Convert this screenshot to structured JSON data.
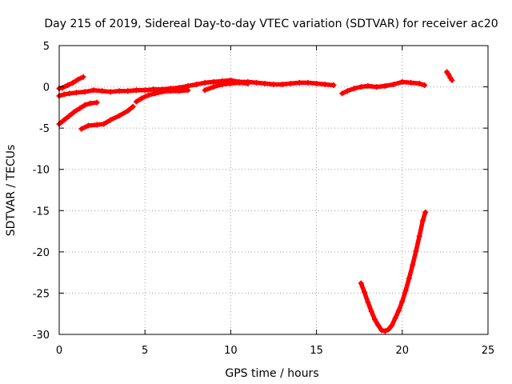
{
  "chart_data": {
    "type": "scatter",
    "title": "Day 215 of 2019, Sidereal Day-to-day VTEC variation (SDTVAR) for receiver ac20",
    "xlabel": "GPS time / hours",
    "ylabel": "SDTVAR / TECUs",
    "xlim": [
      0,
      25
    ],
    "ylim": [
      -30,
      5
    ],
    "xticks": [
      0,
      5,
      10,
      15,
      20,
      25
    ],
    "yticks": [
      5,
      0,
      -5,
      -10,
      -15,
      -20,
      -25,
      -30
    ],
    "grid": true,
    "series": [
      {
        "name": "SDTVAR",
        "color": "#ff0000",
        "segments": [
          [
            [
              0.0,
              -1.1
            ],
            [
              0.3,
              -0.9
            ],
            [
              0.6,
              -0.8
            ],
            [
              1.0,
              -0.7
            ],
            [
              1.5,
              -0.6
            ],
            [
              2.0,
              -0.4
            ],
            [
              2.5,
              -0.5
            ],
            [
              3.0,
              -0.6
            ],
            [
              3.5,
              -0.5
            ],
            [
              4.0,
              -0.5
            ],
            [
              4.5,
              -0.4
            ],
            [
              5.0,
              -0.4
            ],
            [
              5.5,
              -0.3
            ],
            [
              6.0,
              -0.3
            ],
            [
              6.5,
              -0.2
            ],
            [
              7.0,
              -0.1
            ],
            [
              7.5,
              0.1
            ],
            [
              8.0,
              0.3
            ],
            [
              8.5,
              0.5
            ],
            [
              9.0,
              0.6
            ],
            [
              9.5,
              0.7
            ],
            [
              10.0,
              0.8
            ],
            [
              10.5,
              0.6
            ],
            [
              11.0,
              0.6
            ],
            [
              11.5,
              0.5
            ],
            [
              12.0,
              0.4
            ],
            [
              12.5,
              0.3
            ],
            [
              13.0,
              0.3
            ],
            [
              13.5,
              0.4
            ],
            [
              14.0,
              0.5
            ],
            [
              14.5,
              0.5
            ],
            [
              15.0,
              0.4
            ],
            [
              15.5,
              0.3
            ],
            [
              16.0,
              0.2
            ]
          ],
          [
            [
              0.0,
              -0.2
            ],
            [
              0.2,
              -0.1
            ],
            [
              0.5,
              0.2
            ],
            [
              0.8,
              0.5
            ],
            [
              1.1,
              0.9
            ],
            [
              1.4,
              1.2
            ]
          ],
          [
            [
              0.0,
              -4.5
            ],
            [
              0.3,
              -4.0
            ],
            [
              0.6,
              -3.5
            ],
            [
              0.9,
              -3.0
            ],
            [
              1.2,
              -2.6
            ],
            [
              1.5,
              -2.2
            ],
            [
              1.8,
              -2.0
            ],
            [
              2.2,
              -1.9
            ]
          ],
          [
            [
              1.3,
              -5.1
            ],
            [
              1.7,
              -4.7
            ],
            [
              2.2,
              -4.6
            ],
            [
              2.6,
              -4.5
            ],
            [
              3.0,
              -4.0
            ],
            [
              3.5,
              -3.5
            ],
            [
              4.0,
              -2.9
            ],
            [
              4.3,
              -2.4
            ]
          ],
          [
            [
              4.5,
              -1.8
            ],
            [
              4.8,
              -1.4
            ],
            [
              5.2,
              -1.0
            ],
            [
              5.6,
              -0.8
            ],
            [
              6.0,
              -0.6
            ],
            [
              6.5,
              -0.5
            ],
            [
              7.0,
              -0.5
            ],
            [
              7.5,
              -0.4
            ]
          ],
          [
            [
              8.5,
              -0.4
            ],
            [
              9.0,
              0.0
            ],
            [
              9.5,
              0.3
            ],
            [
              10.0,
              0.4
            ],
            [
              10.5,
              0.5
            ],
            [
              11.0,
              0.4
            ]
          ],
          [
            [
              16.5,
              -0.8
            ],
            [
              16.8,
              -0.5
            ],
            [
              17.2,
              -0.2
            ],
            [
              17.6,
              0.0
            ],
            [
              18.0,
              0.1
            ],
            [
              18.5,
              0.0
            ],
            [
              19.0,
              0.1
            ],
            [
              19.5,
              0.3
            ],
            [
              20.0,
              0.6
            ],
            [
              20.5,
              0.5
            ],
            [
              21.0,
              0.4
            ],
            [
              21.3,
              0.2
            ]
          ],
          [
            [
              22.6,
              1.8
            ],
            [
              22.7,
              1.5
            ],
            [
              22.8,
              1.1
            ],
            [
              22.9,
              0.8
            ]
          ],
          [
            [
              17.6,
              -23.8
            ],
            [
              17.8,
              -24.9
            ],
            [
              18.0,
              -26.1
            ],
            [
              18.2,
              -27.2
            ],
            [
              18.4,
              -28.2
            ],
            [
              18.6,
              -28.9
            ],
            [
              18.8,
              -29.5
            ],
            [
              19.0,
              -29.6
            ],
            [
              19.2,
              -29.4
            ],
            [
              19.4,
              -28.9
            ],
            [
              19.6,
              -28.0
            ],
            [
              19.8,
              -27.1
            ],
            [
              20.0,
              -26.0
            ],
            [
              20.2,
              -24.7
            ],
            [
              20.4,
              -23.2
            ],
            [
              20.6,
              -21.6
            ],
            [
              20.8,
              -19.9
            ],
            [
              21.0,
              -18.1
            ],
            [
              21.2,
              -16.2
            ],
            [
              21.35,
              -15.2
            ]
          ]
        ]
      }
    ]
  }
}
